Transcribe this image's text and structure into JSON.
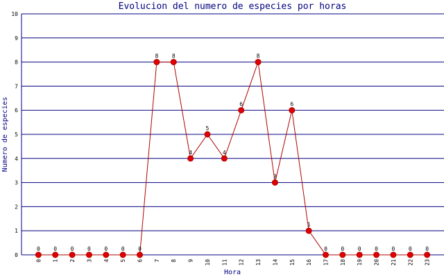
{
  "chart_data": {
    "type": "line",
    "title": "Evolucion del numero de especies por horas",
    "x_label": "Hora",
    "y_label": "Numero de especies",
    "categories": [
      "0",
      "1",
      "2",
      "3",
      "4",
      "5",
      "6",
      "7",
      "8",
      "9",
      "10",
      "11",
      "12",
      "13",
      "14",
      "15",
      "16",
      "17",
      "18",
      "19",
      "20",
      "21",
      "22",
      "23"
    ],
    "values": [
      0,
      0,
      0,
      0,
      0,
      0,
      0,
      8,
      8,
      4,
      5,
      4,
      6,
      8,
      3,
      6,
      1,
      0,
      0,
      0,
      0,
      0,
      0,
      0
    ],
    "color": "#b00000",
    "marker_color": "#e00000",
    "ylim": [
      0,
      10
    ],
    "yticks": [
      0,
      1,
      2,
      3,
      4,
      5,
      6,
      7,
      8,
      9,
      10
    ],
    "grid": true
  }
}
